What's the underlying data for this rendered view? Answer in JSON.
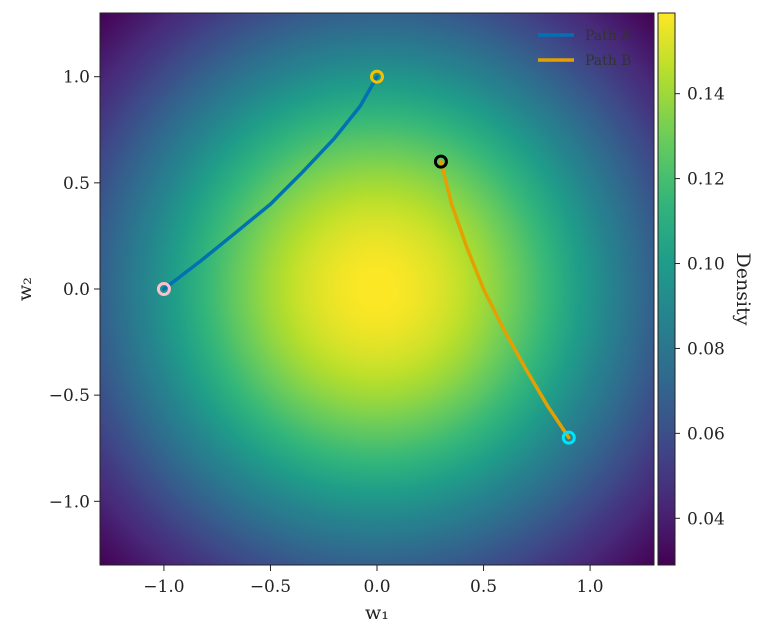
{
  "chart_data": {
    "type": "heatmap",
    "title": "",
    "xlabel": "w₁",
    "ylabel": "w₂",
    "xlim": [
      -1.3,
      1.3
    ],
    "ylim": [
      -1.3,
      1.3
    ],
    "x_ticks": [
      -1.0,
      -0.5,
      0.0,
      0.5,
      1.0
    ],
    "x_tick_labels": [
      "−1.0",
      "−0.5",
      "0.0",
      "0.5",
      "1.0"
    ],
    "y_ticks": [
      1.0,
      0.5,
      0.0,
      -0.5,
      -1.0
    ],
    "y_tick_labels": [
      "1.0",
      "0.5",
      "0.0",
      "−0.5",
      "−1.0"
    ],
    "density": {
      "distribution": "standard-bivariate-normal",
      "mean": [
        0,
        0
      ],
      "sigma": [
        1,
        1
      ],
      "peak": 0.159
    },
    "colormap": "viridis",
    "colorbar": {
      "label": "Density",
      "range": [
        0.029,
        0.159
      ],
      "ticks": [
        0.04,
        0.06,
        0.08,
        0.1,
        0.12,
        0.14
      ],
      "tick_labels": [
        "0.04",
        "0.06",
        "0.08",
        "0.10",
        "0.12",
        "0.14"
      ]
    },
    "grid": false,
    "legend": {
      "placement": "top-right",
      "frame": false
    },
    "series": [
      {
        "name": "Path A",
        "color": "#0072B2",
        "points": [
          [
            -1.0,
            0.0
          ],
          [
            -0.83,
            0.13
          ],
          [
            -0.67,
            0.26
          ],
          [
            -0.5,
            0.4
          ],
          [
            -0.35,
            0.55
          ],
          [
            -0.2,
            0.71
          ],
          [
            -0.08,
            0.86
          ],
          [
            0.0,
            1.0
          ]
        ],
        "start_marker": {
          "x": -1.0,
          "y": 0.0,
          "color": "#ffc0cb"
        },
        "end_marker": {
          "x": 0.0,
          "y": 1.0,
          "color": "#f2c200"
        }
      },
      {
        "name": "Path B",
        "color": "#E69F00",
        "points": [
          [
            0.3,
            0.6
          ],
          [
            0.35,
            0.4
          ],
          [
            0.42,
            0.2
          ],
          [
            0.5,
            0.0
          ],
          [
            0.6,
            -0.2
          ],
          [
            0.7,
            -0.38
          ],
          [
            0.8,
            -0.55
          ],
          [
            0.9,
            -0.7
          ]
        ],
        "start_marker": {
          "x": 0.3,
          "y": 0.6,
          "color": "#000000"
        },
        "end_marker": {
          "x": 0.9,
          "y": -0.7,
          "color": "#00e5ff"
        }
      }
    ]
  }
}
